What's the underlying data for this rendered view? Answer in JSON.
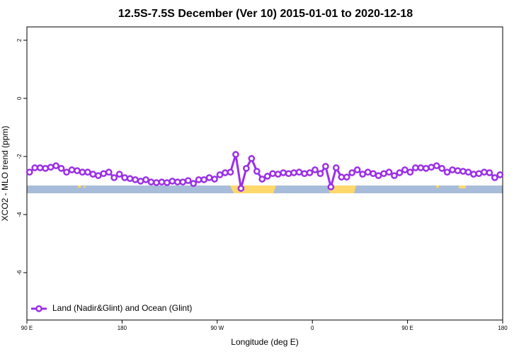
{
  "chart_data": {
    "type": "line",
    "title": "12.5S-7.5S December (Ver 10)   2015-01-01 to 2020-12-18",
    "x_label": "Longitude (deg E)",
    "y_label": "XCO2 - MLO trend (ppm)",
    "x": [
      92.5,
      97.5,
      102.5,
      107.5,
      112.5,
      117.5,
      122.5,
      127.5,
      132.5,
      137.5,
      142.5,
      147.5,
      152.5,
      157.5,
      162.5,
      167.5,
      172.5,
      177.5,
      182.5,
      187.5,
      192.5,
      197.5,
      202.5,
      207.5,
      212.5,
      217.5,
      222.5,
      227.5,
      232.5,
      237.5,
      242.5,
      247.5,
      252.5,
      257.5,
      262.5,
      267.5,
      272.5,
      277.5,
      282.5,
      287.5,
      292.5,
      297.5,
      302.5,
      307.5,
      312.5,
      317.5,
      322.5,
      327.5,
      332.5,
      337.5,
      342.5,
      347.5,
      352.5,
      357.5,
      362.5,
      367.5,
      372.5,
      377.5,
      382.5,
      387.5,
      392.5,
      397.5,
      402.5,
      407.5,
      412.5,
      417.5,
      422.5,
      427.5,
      432.5,
      437.5,
      442.5,
      447.5,
      452.5,
      457.5,
      462.5,
      467.5,
      472.5,
      477.5,
      482.5,
      487.5,
      492.5,
      497.5,
      502.5,
      507.5,
      512.5,
      517.5,
      522.5,
      527.5,
      532.5,
      537.5
    ],
    "series": [
      {
        "name": "Land (Nadir&Glint) and Ocean (Glint)",
        "color": "#9b30e8",
        "values": [
          -2.54,
          -2.39,
          -2.39,
          -2.41,
          -2.37,
          -2.32,
          -2.41,
          -2.54,
          -2.46,
          -2.49,
          -2.54,
          -2.54,
          -2.61,
          -2.66,
          -2.59,
          -2.54,
          -2.73,
          -2.61,
          -2.73,
          -2.76,
          -2.8,
          -2.85,
          -2.8,
          -2.88,
          -2.9,
          -2.88,
          -2.9,
          -2.85,
          -2.88,
          -2.88,
          -2.83,
          -2.93,
          -2.8,
          -2.8,
          -2.73,
          -2.78,
          -2.63,
          -2.56,
          -2.54,
          -1.93,
          -3.1,
          -2.41,
          -2.07,
          -2.51,
          -2.78,
          -2.68,
          -2.59,
          -2.61,
          -2.56,
          -2.59,
          -2.56,
          -2.54,
          -2.59,
          -2.56,
          -2.46,
          -2.59,
          -2.34,
          -3.05,
          -2.39,
          -2.71,
          -2.71,
          -2.56,
          -2.46,
          -2.61,
          -2.54,
          -2.59,
          -2.66,
          -2.59,
          -2.54,
          -2.66,
          -2.56,
          -2.46,
          -2.54,
          -2.39,
          -2.39,
          -2.41,
          -2.37,
          -2.32,
          -2.41,
          -2.54,
          -2.46,
          -2.49,
          -2.51,
          -2.54,
          -2.61,
          -2.59,
          -2.54,
          -2.56,
          -2.73,
          -2.63
        ]
      }
    ],
    "xlim": [
      90,
      540
    ],
    "xticks": [
      {
        "value": 90,
        "label": "90 E"
      },
      180,
      {
        "value": 270,
        "label": "90 W"
      },
      {
        "value": 360,
        "label": "0"
      },
      {
        "value": 450,
        "label": "90 E"
      },
      {
        "value": 540,
        "label": "180"
      }
    ],
    "ylim": [
      -7.63,
      2.46
    ],
    "yticks": [
      2,
      0,
      -2,
      -4,
      -6
    ],
    "grid": false,
    "legend": "bottom left"
  }
}
